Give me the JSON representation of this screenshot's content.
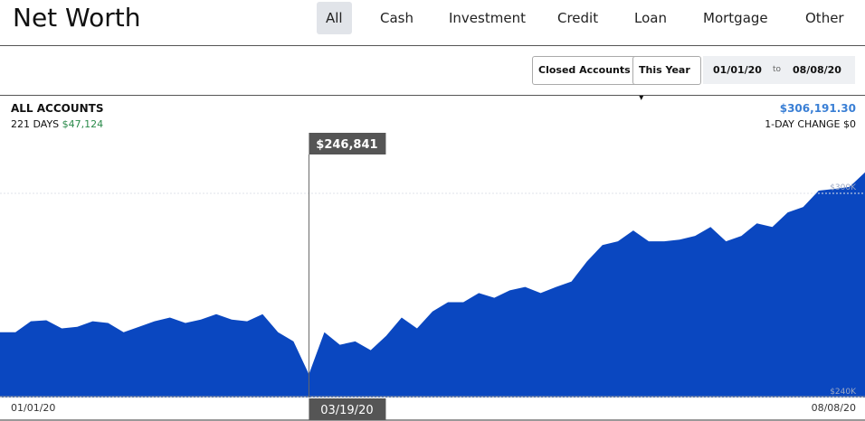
{
  "header": {
    "title": "Net Worth",
    "tabs": [
      "All",
      "Cash",
      "Investment",
      "Credit",
      "Loan",
      "Mortgage",
      "Other"
    ]
  },
  "filters": {
    "closed_accounts": "Closed Accounts",
    "period": "This Year",
    "from": "01/01/20",
    "to_word": "to",
    "to": "08/08/20"
  },
  "summary": {
    "label": "ALL ACCOUNTS",
    "days": "221 DAYS",
    "change": "$47,124",
    "total": "$306,191.30",
    "day_change": "1-DAY CHANGE $0"
  },
  "chart_data": {
    "type": "area",
    "color": "#0a47c0",
    "categories": [
      "01/01/20",
      null,
      null,
      null,
      null,
      null,
      null,
      null,
      null,
      null,
      null,
      null,
      null,
      null,
      null,
      null,
      null,
      null,
      null,
      null,
      "03/19/20",
      null,
      null,
      null,
      null,
      null,
      null,
      null,
      null,
      null,
      null,
      null,
      null,
      null,
      null,
      null,
      null,
      null,
      null,
      null,
      null,
      null,
      null,
      null,
      null,
      null,
      null,
      null,
      null,
      null,
      null,
      null,
      null,
      null,
      null,
      null,
      "08/08/20"
    ],
    "values": [
      259200,
      259200,
      262400,
      262700,
      260300,
      260800,
      262400,
      261900,
      259200,
      260800,
      262400,
      263500,
      261900,
      262900,
      264500,
      262900,
      262400,
      264500,
      259200,
      256500,
      246841,
      259200,
      255500,
      256500,
      253900,
      258100,
      263500,
      260300,
      265300,
      268000,
      268000,
      270700,
      269300,
      271500,
      272500,
      270700,
      272500,
      274100,
      280000,
      284800,
      285900,
      289100,
      285900,
      285900,
      286400,
      287500,
      290100,
      285900,
      287500,
      291200,
      290100,
      294400,
      296000,
      300800,
      301300,
      301900,
      306191.3
    ],
    "value_labels": [
      null,
      null,
      null,
      null,
      null,
      null,
      null,
      null,
      null,
      null,
      null,
      null,
      null,
      null,
      null,
      null,
      null,
      null,
      null,
      null,
      "$246,841",
      null,
      null,
      null,
      null,
      null,
      null,
      null,
      null,
      null,
      null,
      null,
      null,
      null,
      null,
      null,
      null,
      null,
      null,
      null,
      null,
      null,
      null,
      null,
      null,
      null,
      null,
      null,
      null,
      null,
      null,
      null,
      null,
      null,
      null,
      null,
      null
    ],
    "ylim": [
      240000,
      317000
    ],
    "yticks": [
      {
        "value": 240000,
        "label": "$240K"
      },
      {
        "value": 300000,
        "label": "$300K"
      }
    ],
    "grid": true,
    "selected": 20
  }
}
